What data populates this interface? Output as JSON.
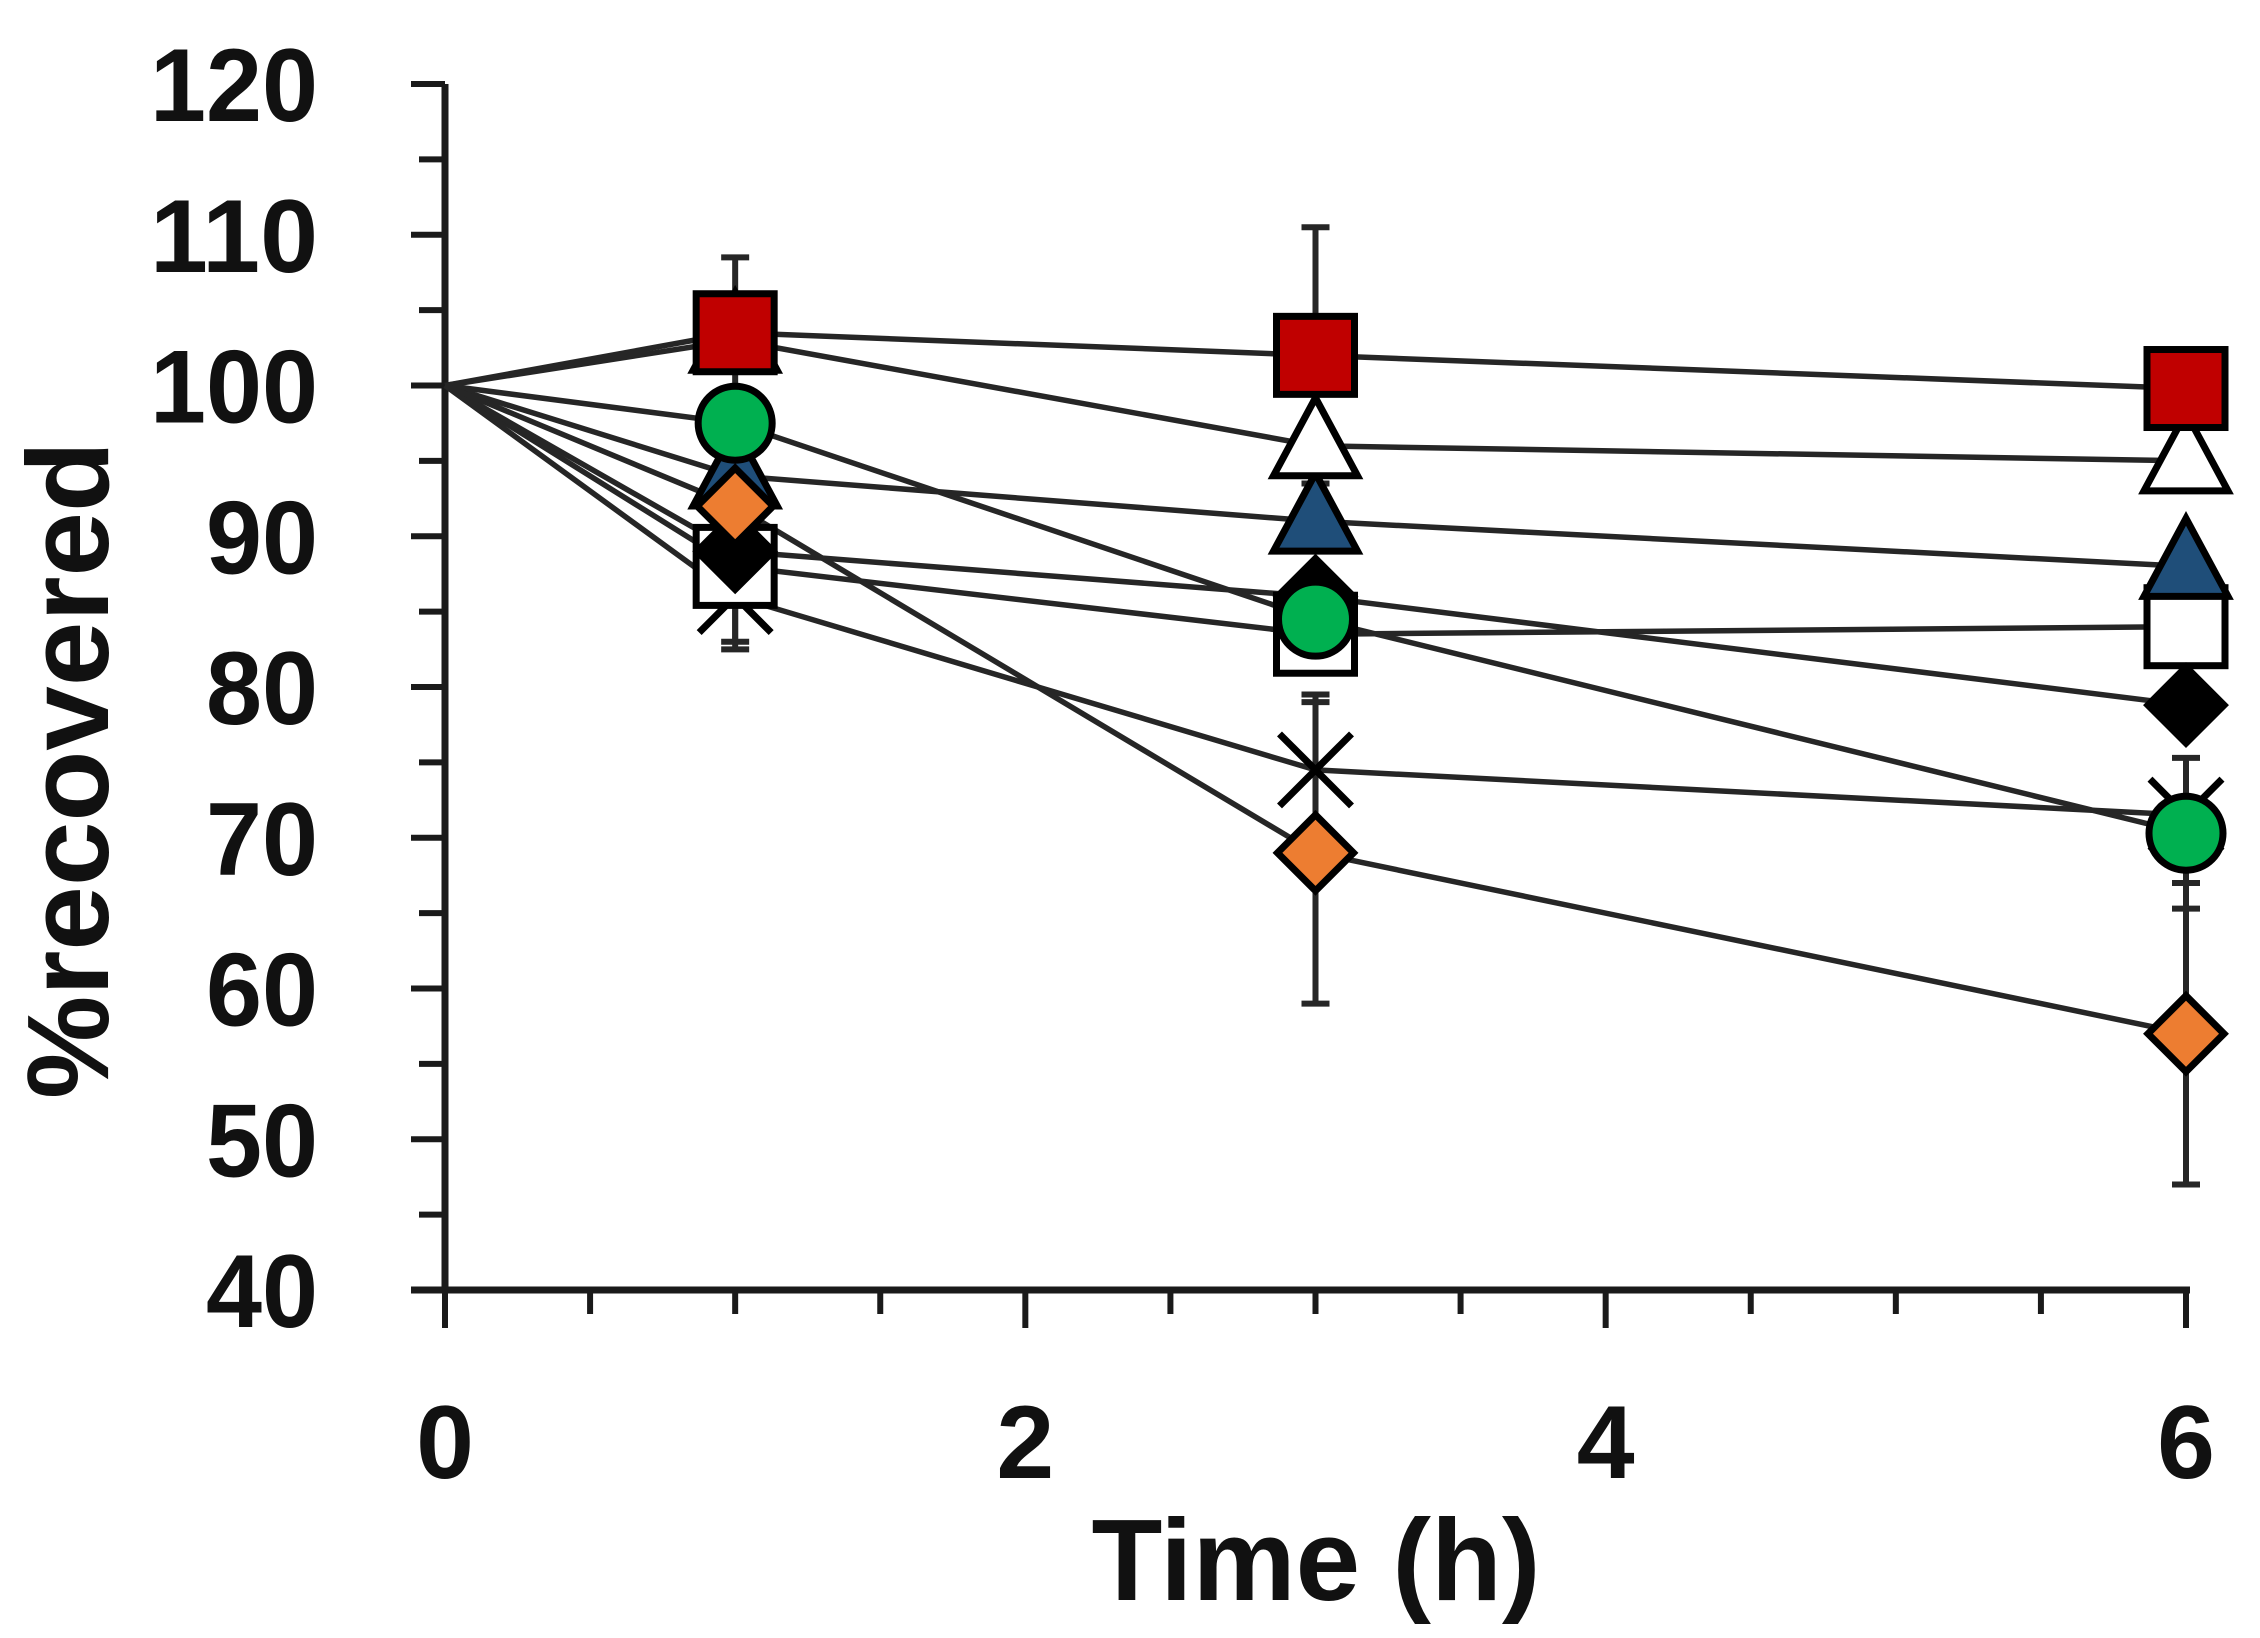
{
  "chart_data": {
    "type": "line",
    "title": "",
    "xlabel": "Time (h)",
    "ylabel": "%recovered",
    "xlim": [
      0,
      6
    ],
    "ylim": [
      40,
      120
    ],
    "xticks": [
      0,
      2,
      4,
      6
    ],
    "xtick_labels": [
      "0",
      "2",
      "4",
      "6"
    ],
    "xminor_step": 0.5,
    "yticks": [
      40,
      50,
      60,
      70,
      80,
      90,
      100,
      110,
      120
    ],
    "ytick_labels": [
      "40",
      "50",
      "60",
      "70",
      "80",
      "90",
      "100",
      "110",
      "120"
    ],
    "yminor_step": 5,
    "grid": false,
    "legend": "none",
    "x": [
      0,
      1,
      3,
      6
    ],
    "series": [
      {
        "name": "red-square",
        "marker": "square",
        "fill": "#c00000",
        "stroke": "#000000",
        "values": [
          100,
          103.5,
          102,
          99.8
        ],
        "err": [
          0,
          5,
          8.5,
          0
        ]
      },
      {
        "name": "open-triangle",
        "marker": "triangle",
        "fill": "#ffffff",
        "stroke": "#000000",
        "values": [
          100,
          103,
          96,
          95
        ],
        "err": [
          0,
          0,
          0,
          0
        ]
      },
      {
        "name": "blue-triangle",
        "marker": "triangle",
        "fill": "#1f4e79",
        "stroke": "#000000",
        "values": [
          100,
          94,
          91,
          88
        ],
        "err": [
          0,
          0,
          0,
          0
        ]
      },
      {
        "name": "open-square",
        "marker": "square",
        "fill": "#ffffff",
        "stroke": "#000000",
        "values": [
          100,
          88,
          83.5,
          84
        ],
        "err": [
          0,
          5,
          0,
          0
        ]
      },
      {
        "name": "black-diamond",
        "marker": "diamond",
        "fill": "#000000",
        "stroke": "#000000",
        "values": [
          100,
          89,
          86,
          78.8
        ],
        "err": [
          0,
          0,
          0,
          0
        ]
      },
      {
        "name": "cross",
        "marker": "x",
        "fill": "none",
        "stroke": "#000000",
        "values": [
          100,
          86,
          74.5,
          71.5
        ],
        "err": [
          0,
          3.5,
          5,
          0
        ]
      },
      {
        "name": "green-circle",
        "marker": "circle",
        "fill": "#00b050",
        "stroke": "#000000",
        "values": [
          100,
          97.5,
          84.5,
          70.3
        ],
        "err": [
          0,
          0,
          0,
          5
        ]
      },
      {
        "name": "orange-diamond",
        "marker": "diamond",
        "fill": "#ed7d31",
        "stroke": "#000000",
        "values": [
          100,
          92,
          69,
          57
        ],
        "err": [
          0,
          0,
          10,
          10
        ]
      }
    ]
  }
}
